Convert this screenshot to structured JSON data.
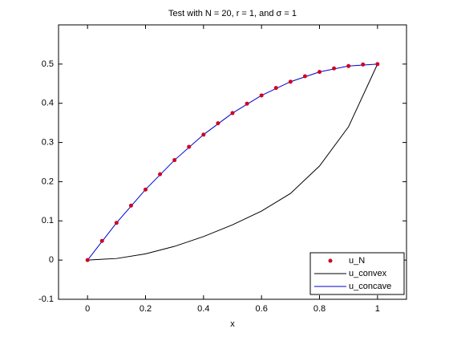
{
  "chart_data": {
    "type": "line",
    "title": "Test with N = 20, r = 1, and σ = 1",
    "xlabel": "x",
    "xlim": [
      -0.1,
      1.1
    ],
    "ylim": [
      -0.1,
      0.6
    ],
    "xticks": [
      0,
      0.2,
      0.4,
      0.6,
      0.8,
      1
    ],
    "yticks": [
      -0.1,
      0,
      0.1,
      0.2,
      0.3,
      0.4,
      0.5
    ],
    "legend": "lower right",
    "series": [
      {
        "name": "u_N",
        "color": "#d00020",
        "marker": "dot",
        "x": [
          0,
          0.05,
          0.1,
          0.15,
          0.2,
          0.25,
          0.3,
          0.35,
          0.4,
          0.45,
          0.5,
          0.55,
          0.6,
          0.65,
          0.7,
          0.75,
          0.8,
          0.85,
          0.9,
          0.95,
          1
        ],
        "values": [
          0,
          0.049,
          0.095,
          0.139,
          0.18,
          0.219,
          0.255,
          0.289,
          0.32,
          0.349,
          0.375,
          0.399,
          0.42,
          0.439,
          0.455,
          0.469,
          0.48,
          0.489,
          0.495,
          0.499,
          0.5
        ]
      },
      {
        "name": "u_convex",
        "color": "#000000",
        "marker": "line",
        "x": [
          0,
          0.1,
          0.2,
          0.3,
          0.4,
          0.5,
          0.6,
          0.7,
          0.8,
          0.9,
          1
        ],
        "values": [
          0,
          0.004,
          0.016,
          0.035,
          0.06,
          0.09,
          0.125,
          0.17,
          0.24,
          0.34,
          0.5
        ]
      },
      {
        "name": "u_concave",
        "color": "#0000cc",
        "marker": "line",
        "x": [
          0,
          0.1,
          0.2,
          0.3,
          0.4,
          0.5,
          0.6,
          0.7,
          0.8,
          0.9,
          1
        ],
        "values": [
          0,
          0.095,
          0.18,
          0.255,
          0.32,
          0.375,
          0.42,
          0.455,
          0.48,
          0.495,
          0.5
        ]
      }
    ]
  }
}
